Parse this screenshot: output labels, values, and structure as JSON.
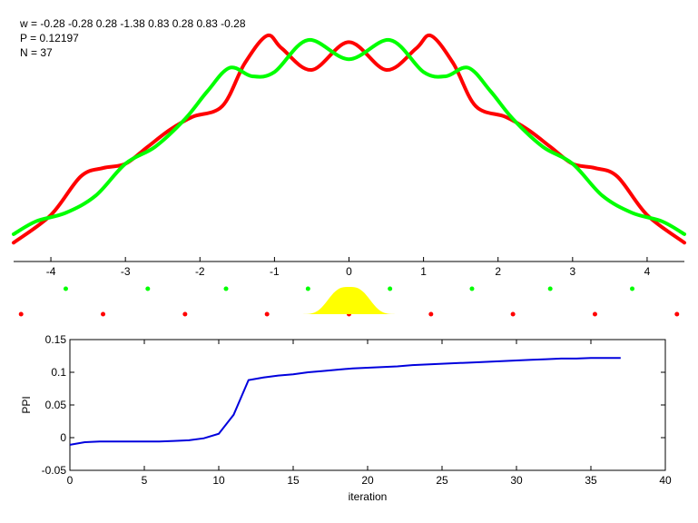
{
  "info": {
    "w_line": "w = -0.28  -0.28  0.28  -1.38  0.83  0.28  0.83  -0.28",
    "p_line": "P = 0.12197",
    "n_line": "N = 37"
  },
  "colors": {
    "red": "#ff0000",
    "green": "#00ff00",
    "yellow": "#ffff00",
    "blue": "#0000dd",
    "axis": "#000000"
  },
  "chart_data": [
    {
      "type": "line",
      "xlim": [
        -4.5,
        4.5
      ],
      "ylim": [
        0,
        1
      ],
      "x_ticks": [
        -4,
        -3,
        -2,
        -1,
        0,
        1,
        2,
        3,
        4
      ],
      "x_tick_labels": [
        "-4",
        "-3",
        "-2",
        "-1",
        "0",
        "1",
        "2",
        "3",
        "4"
      ],
      "series": [
        {
          "color": "red",
          "x": [
            -4.5,
            -4.0,
            -3.6,
            -3.3,
            -3.0,
            -2.7,
            -2.4,
            -2.1,
            -1.7,
            -1.4,
            -1.1,
            -0.9,
            -0.5,
            0.0,
            0.5,
            0.9,
            1.1,
            1.4,
            1.7,
            2.1,
            2.4,
            2.7,
            3.0,
            3.3,
            3.6,
            4.0,
            4.5
          ],
          "y": [
            0.02,
            0.15,
            0.33,
            0.37,
            0.39,
            0.47,
            0.55,
            0.61,
            0.66,
            0.86,
            0.99,
            0.93,
            0.83,
            0.96,
            0.83,
            0.93,
            0.99,
            0.86,
            0.66,
            0.61,
            0.55,
            0.47,
            0.39,
            0.37,
            0.33,
            0.15,
            0.02
          ]
        },
        {
          "color": "green",
          "x": [
            -4.5,
            -4.2,
            -3.8,
            -3.4,
            -3.0,
            -2.6,
            -2.2,
            -1.9,
            -1.6,
            -1.3,
            -1.0,
            -0.55,
            0.0,
            0.55,
            1.0,
            1.3,
            1.6,
            1.9,
            2.2,
            2.6,
            3.0,
            3.4,
            3.8,
            4.2,
            4.5
          ],
          "y": [
            0.06,
            0.12,
            0.16,
            0.24,
            0.39,
            0.47,
            0.6,
            0.73,
            0.84,
            0.8,
            0.82,
            0.97,
            0.88,
            0.97,
            0.82,
            0.8,
            0.84,
            0.73,
            0.6,
            0.47,
            0.39,
            0.24,
            0.16,
            0.12,
            0.06
          ]
        }
      ],
      "dots": {
        "green_x": [
          -3.8,
          -2.7,
          -1.65,
          -0.55,
          0.55,
          1.65,
          2.7,
          3.8
        ],
        "red_x": [
          -4.4,
          -3.3,
          -2.2,
          -1.1,
          0.0,
          1.1,
          2.2,
          3.3,
          4.4
        ]
      },
      "gaussian": {
        "center": 0.0,
        "halfwidth": 0.78
      }
    },
    {
      "type": "line",
      "xlim": [
        0,
        40
      ],
      "ylim": [
        -0.05,
        0.15
      ],
      "xlabel": "iteration",
      "ylabel": "PPI",
      "x_ticks": [
        0,
        5,
        10,
        15,
        20,
        25,
        30,
        35,
        40
      ],
      "x_tick_labels": [
        "0",
        "5",
        "10",
        "15",
        "20",
        "25",
        "30",
        "35",
        "40"
      ],
      "y_ticks": [
        -0.05,
        0,
        0.05,
        0.1,
        0.15
      ],
      "y_tick_labels": [
        "-0.05",
        "0",
        "0.05",
        "0.1",
        "0.15"
      ],
      "series": [
        {
          "color": "blue",
          "x": [
            0,
            1,
            2,
            3,
            4,
            5,
            6,
            7,
            8,
            9,
            10,
            11,
            12,
            13,
            14,
            15,
            16,
            17,
            18,
            19,
            20,
            21,
            22,
            23,
            24,
            25,
            26,
            27,
            28,
            29,
            30,
            31,
            32,
            33,
            34,
            35,
            36,
            37
          ],
          "y": [
            -0.011,
            -0.007,
            -0.006,
            -0.006,
            -0.006,
            -0.006,
            -0.006,
            -0.005,
            -0.004,
            -0.001,
            0.006,
            0.035,
            0.088,
            0.092,
            0.095,
            0.097,
            0.1,
            0.102,
            0.104,
            0.106,
            0.107,
            0.108,
            0.109,
            0.111,
            0.112,
            0.113,
            0.114,
            0.115,
            0.116,
            0.117,
            0.118,
            0.119,
            0.12,
            0.121,
            0.121,
            0.122,
            0.122,
            0.122
          ]
        }
      ]
    }
  ]
}
